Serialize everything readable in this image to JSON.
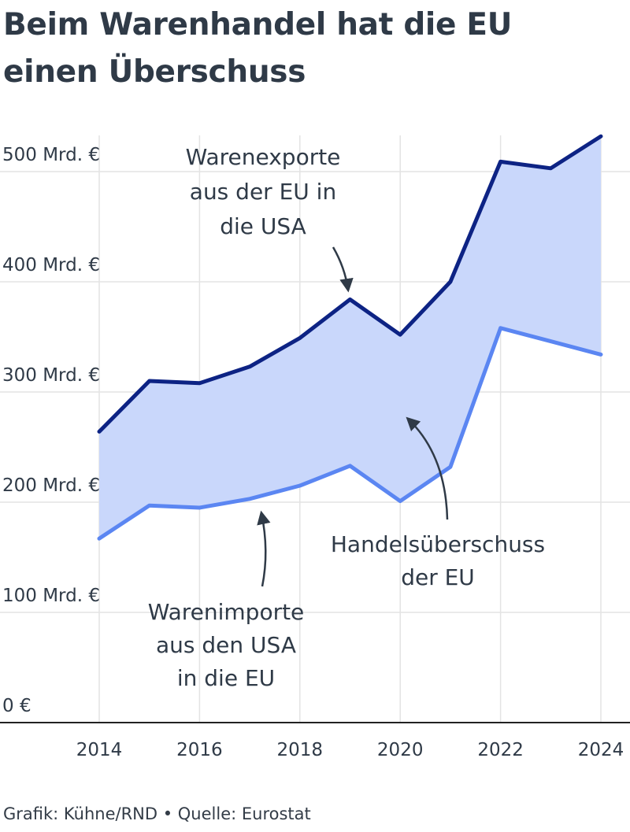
{
  "title": {
    "line1": "Beim Warenhandel hat die EU",
    "line2": "einen Überschuss"
  },
  "footer": "Grafik: Kühne/RND • Quelle: Eurostat",
  "chart_data": {
    "type": "area",
    "x": [
      2014,
      2015,
      2016,
      2017,
      2018,
      2019,
      2020,
      2021,
      2022,
      2023,
      2024
    ],
    "series": [
      {
        "name": "Warenexporte aus der EU in die USA",
        "values": [
          264,
          310,
          308,
          323,
          349,
          384,
          352,
          400,
          509,
          503,
          532
        ],
        "color": "#0d2384"
      },
      {
        "name": "Warenimporte aus den USA in die EU",
        "values": [
          167,
          197,
          195,
          203,
          215,
          233,
          201,
          232,
          358,
          346,
          334
        ],
        "color": "#5b86f2"
      }
    ],
    "fill_between_color": "#c9d7fb",
    "fill_label": "Handelsüberschuss der EU",
    "ylim": [
      0,
      540
    ],
    "xlim": [
      2014,
      2024
    ],
    "y_ticks": [
      0,
      100,
      200,
      300,
      400,
      500
    ],
    "y_tick_labels": [
      "0 €",
      "100 Mrd. €",
      "200 Mrd. €",
      "300 Mrd. €",
      "400 Mrd. €",
      "500 Mrd. €"
    ],
    "x_ticks": [
      2014,
      2016,
      2018,
      2020,
      2022,
      2024
    ],
    "x_tick_labels": [
      "2014",
      "2016",
      "2018",
      "2020",
      "2022",
      "2024"
    ],
    "grid": true,
    "annotations": [
      {
        "target": "exports",
        "lines": [
          "Warenexporte",
          "aus der EU in",
          "die USA"
        ]
      },
      {
        "target": "imports",
        "lines": [
          "Warenimporte",
          "aus den USA",
          "in die EU"
        ]
      },
      {
        "target": "surplus",
        "lines": [
          "Handelsüberschuss",
          "der EU"
        ]
      }
    ]
  }
}
